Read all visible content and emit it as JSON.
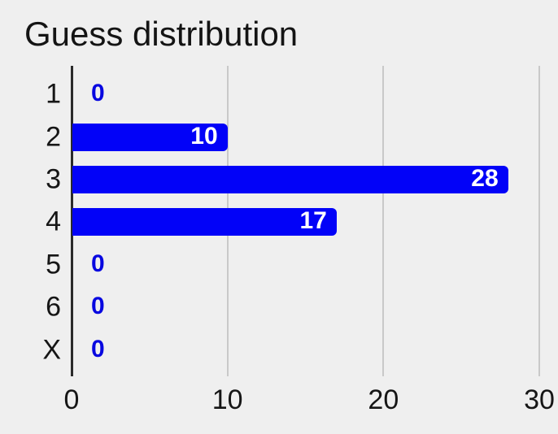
{
  "chart_data": {
    "type": "bar",
    "orientation": "horizontal",
    "title": "Guess distribution",
    "categories": [
      "1",
      "2",
      "3",
      "4",
      "5",
      "6",
      "X"
    ],
    "values": [
      0,
      10,
      28,
      17,
      0,
      0,
      0
    ],
    "xlabel": "",
    "ylabel": "",
    "xlim": [
      0,
      30
    ],
    "xticks": [
      0,
      10,
      20,
      30
    ],
    "grid": "vertical gridlines at x ticks, dark axis line at 0",
    "legend": "none",
    "colors": {
      "background": "#efefef",
      "bar": "#0202f8",
      "zero_value_label": "#0707e0",
      "inbar_value_label": "#ffffff",
      "gridline": "#c9c9c9",
      "axis_line": "#2a2a2a",
      "text": "#161616"
    }
  }
}
